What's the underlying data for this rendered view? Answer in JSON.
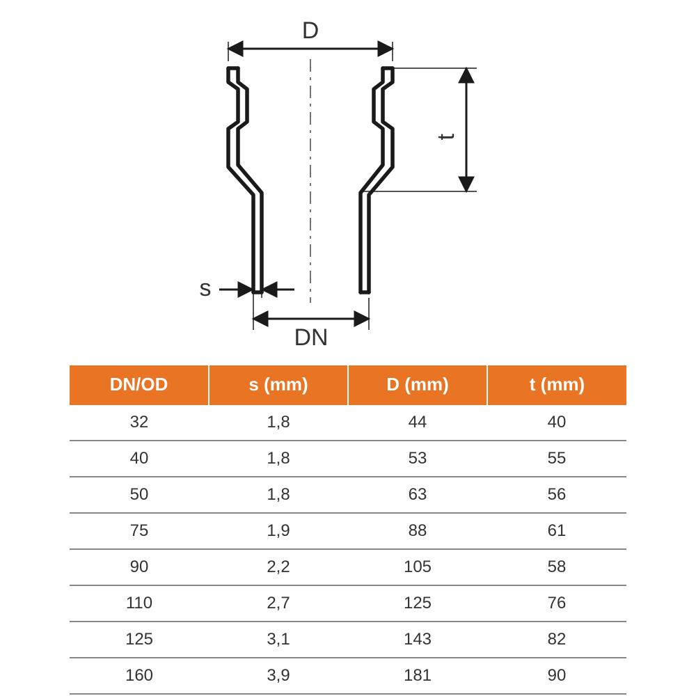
{
  "diagram": {
    "labels": {
      "D": "D",
      "t": "t",
      "s": "s",
      "DN": "DN"
    },
    "stroke_color": "#1a1a1a",
    "stroke_width": 3,
    "thin_stroke_width": 1.5,
    "font_size": 30,
    "text_color": "#333333"
  },
  "table": {
    "header_bg": "#e87424",
    "header_text_color": "#ffffff",
    "row_border_color": "#888888",
    "cell_text_color": "#333333",
    "columns": [
      "DN/OD",
      "s (mm)",
      "D (mm)",
      "t (mm)"
    ],
    "rows": [
      [
        "32",
        "1,8",
        "44",
        "40"
      ],
      [
        "40",
        "1,8",
        "53",
        "55"
      ],
      [
        "50",
        "1,8",
        "63",
        "56"
      ],
      [
        "75",
        "1,9",
        "88",
        "61"
      ],
      [
        "90",
        "2,2",
        "105",
        "58"
      ],
      [
        "110",
        "2,7",
        "125",
        "76"
      ],
      [
        "125",
        "3,1",
        "143",
        "82"
      ],
      [
        "160",
        "3,9",
        "181",
        "90"
      ]
    ]
  }
}
